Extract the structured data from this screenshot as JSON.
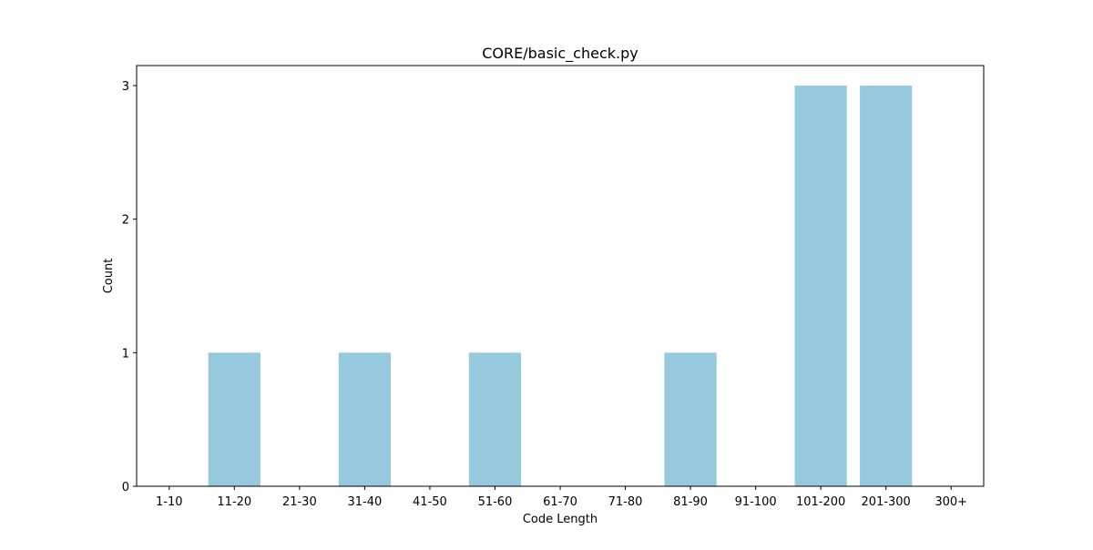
{
  "chart_data": {
    "type": "bar",
    "title": "CORE/basic_check.py",
    "xlabel": "Code Length",
    "ylabel": "Count",
    "categories": [
      "1-10",
      "11-20",
      "21-30",
      "31-40",
      "41-50",
      "51-60",
      "61-70",
      "71-80",
      "81-90",
      "91-100",
      "101-200",
      "201-300",
      "300+"
    ],
    "values": [
      0,
      1,
      0,
      1,
      0,
      1,
      0,
      0,
      1,
      0,
      3,
      3,
      0
    ],
    "ylim": [
      0,
      3.15
    ],
    "yticks": [
      0,
      1,
      2,
      3
    ],
    "bar_color": "#96c9dd",
    "grid": false,
    "legend": "none"
  }
}
